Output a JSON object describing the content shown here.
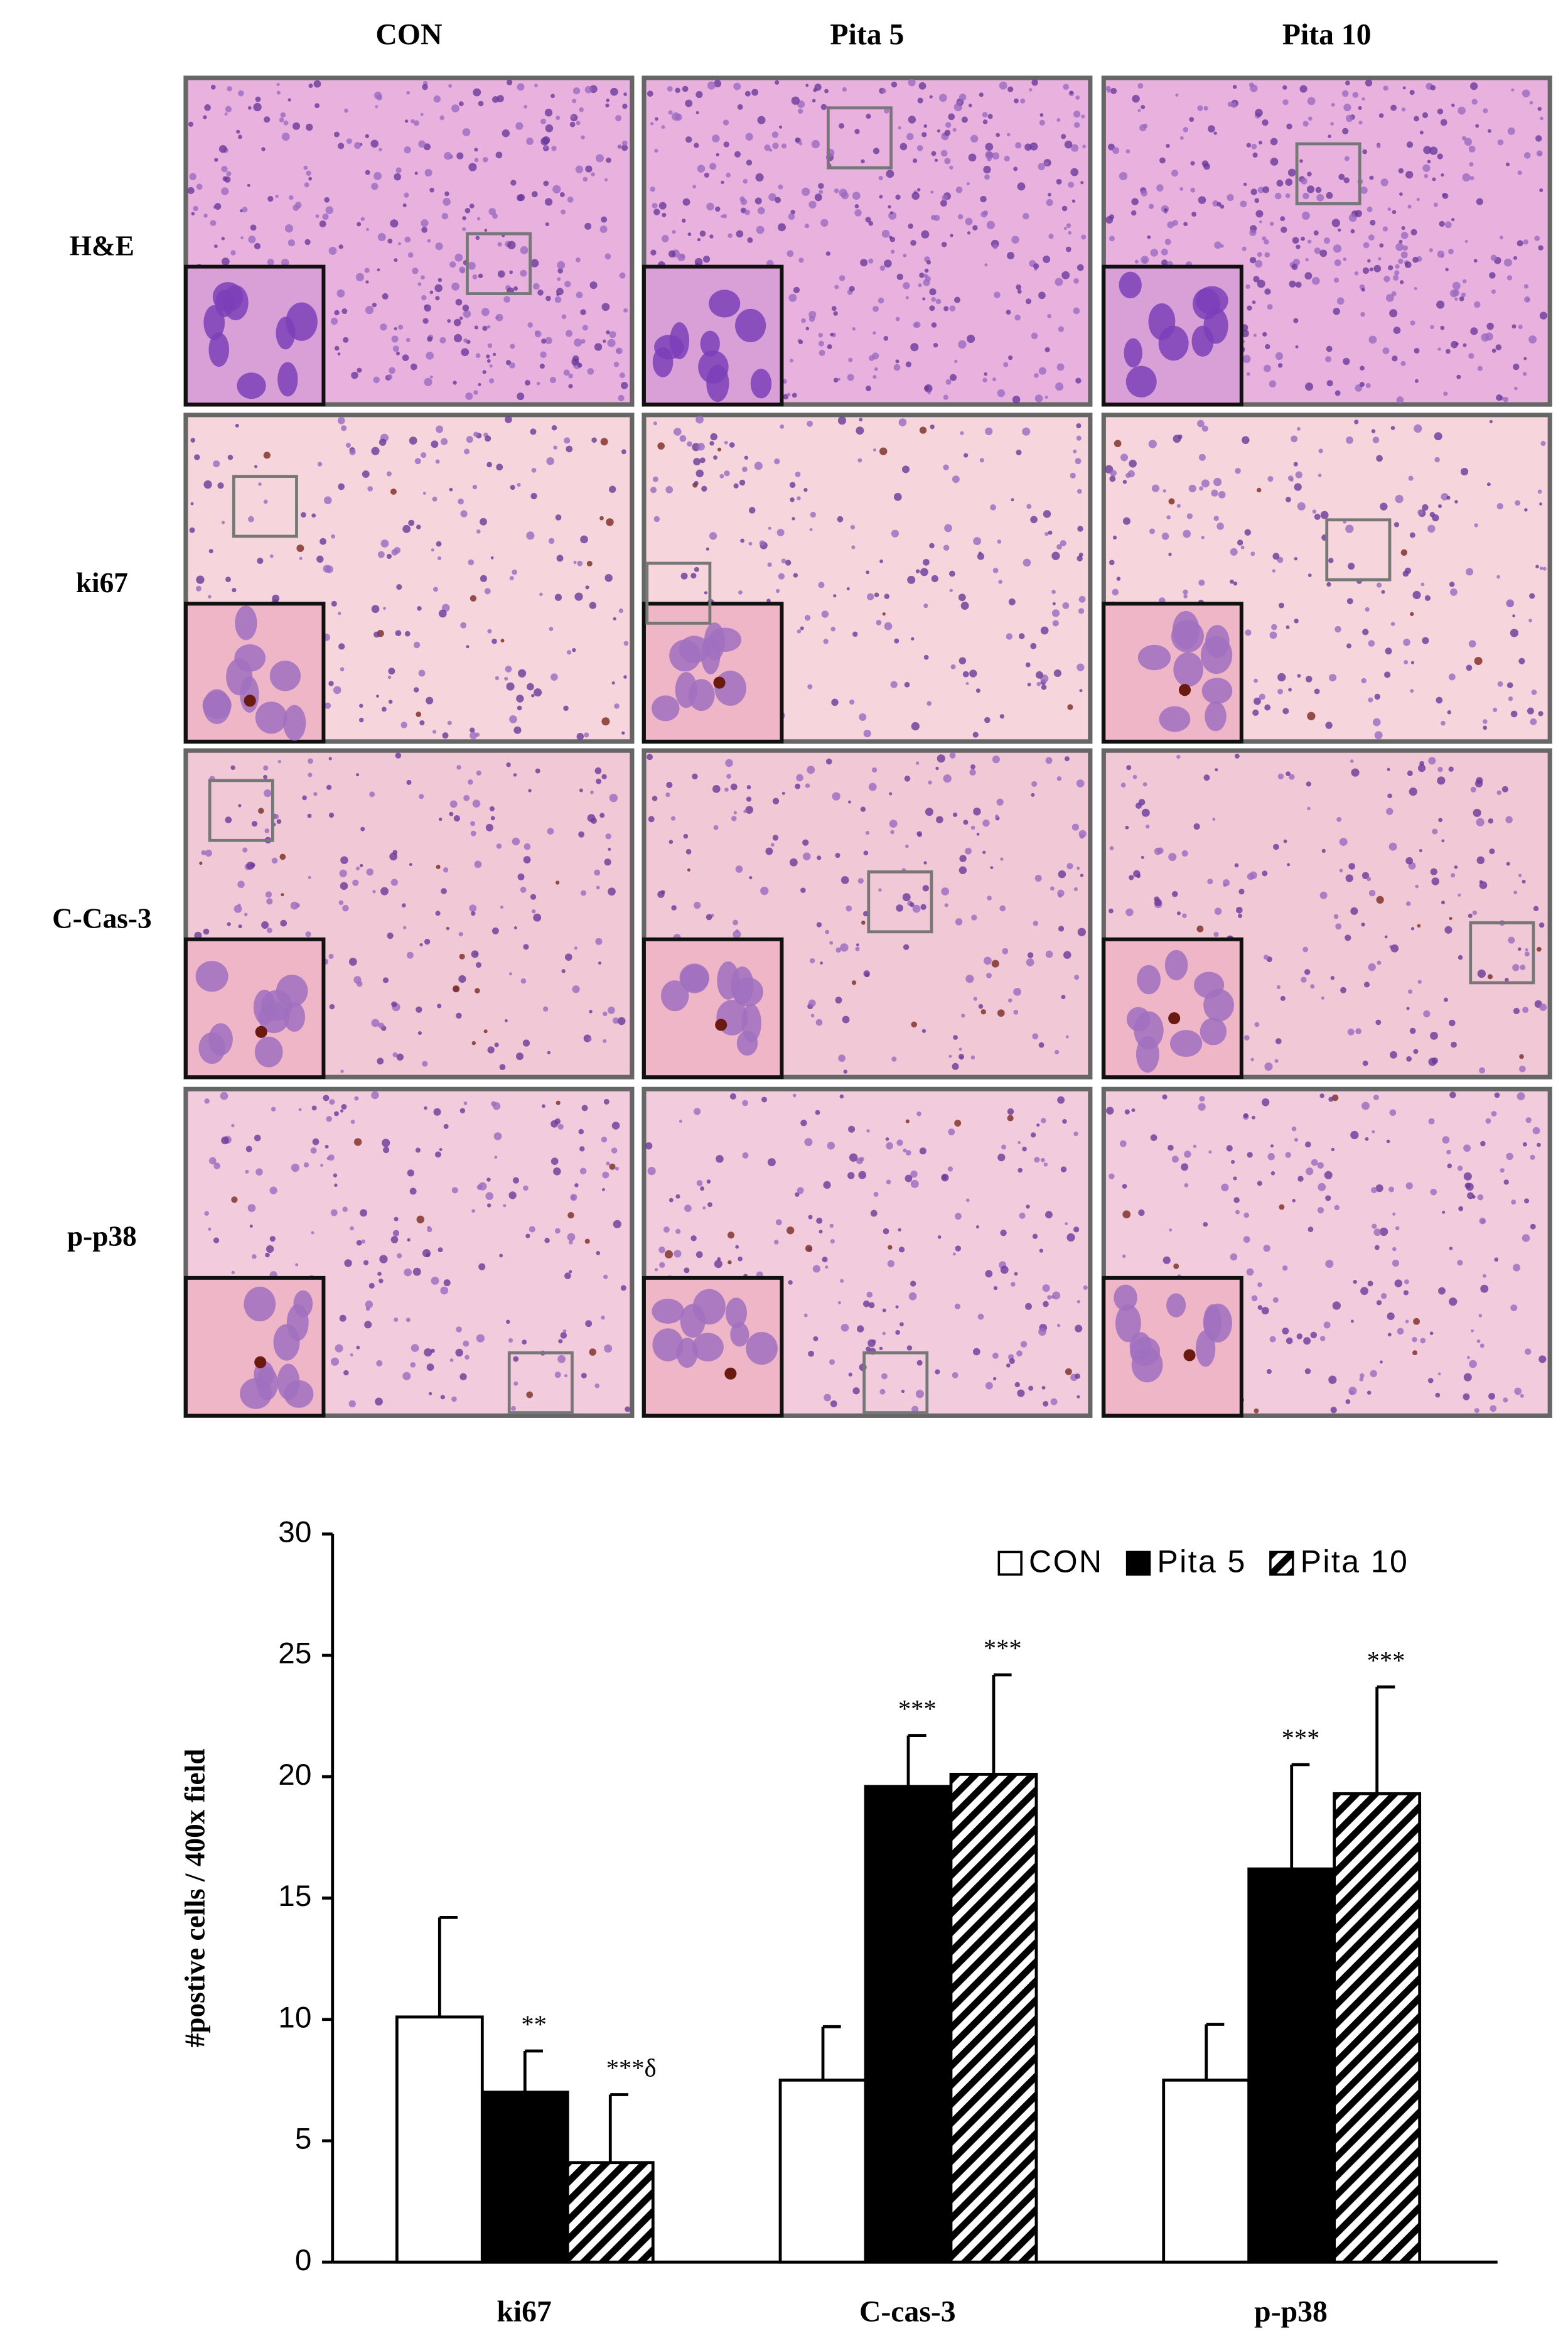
{
  "micrographs": {
    "columns": [
      "CON",
      "Pita 5",
      "Pita 10"
    ],
    "rows": [
      "H&E",
      "ki67",
      "C-Cas-3",
      "p-p38"
    ]
  },
  "chart_data": {
    "type": "bar",
    "ylabel": "#postive cells / 400x field",
    "categories": [
      "ki67",
      "C-cas-3",
      "p-p38"
    ],
    "series": [
      {
        "name": "CON",
        "color": "#ffffff",
        "values": [
          10.1,
          7.5,
          7.5
        ],
        "errors": [
          4.1,
          2.2,
          2.3
        ],
        "annotations": [
          null,
          null,
          null
        ]
      },
      {
        "name": "Pita 5",
        "color": "#000000",
        "values": [
          7.0,
          19.6,
          16.2
        ],
        "errors": [
          1.7,
          2.1,
          4.3
        ],
        "annotations": [
          "**",
          "***",
          "***"
        ]
      },
      {
        "name": "Pita 10",
        "color": "#000000",
        "hatch": true,
        "values": [
          4.1,
          20.1,
          19.3
        ],
        "errors": [
          2.8,
          4.1,
          4.4
        ],
        "annotations": [
          "***δ",
          "***",
          "***"
        ]
      }
    ],
    "ylim": [
      0,
      30
    ],
    "yticks": [
      0,
      5,
      10,
      15,
      20,
      25,
      30
    ],
    "legend": "top-right"
  }
}
